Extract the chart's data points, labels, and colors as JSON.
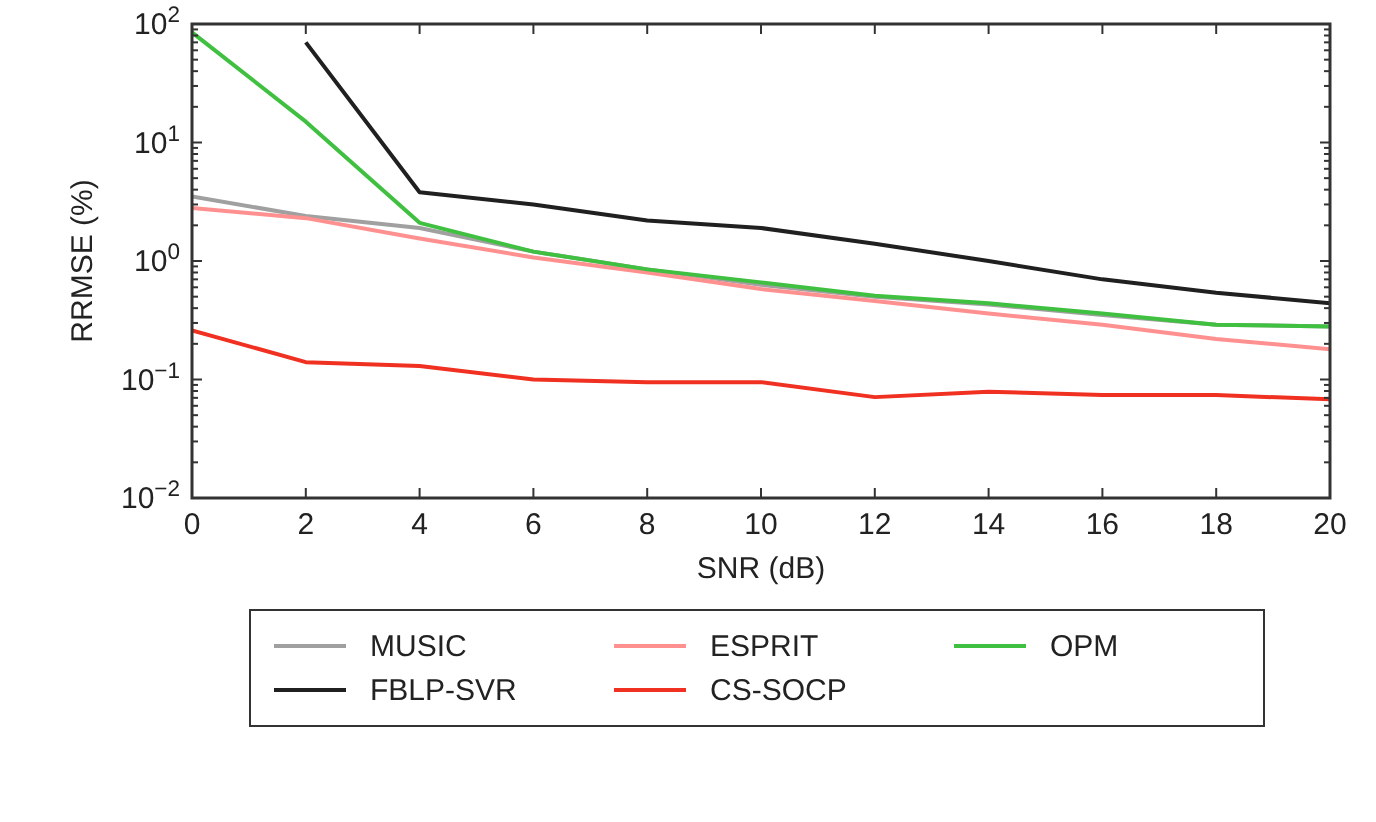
{
  "chart_data": {
    "type": "line",
    "xlabel": "SNR (dB)",
    "ylabel": "RRMSE (%)",
    "x": [
      0,
      2,
      4,
      6,
      8,
      10,
      12,
      14,
      16,
      18,
      20
    ],
    "xlim": [
      0,
      20
    ],
    "xticks": [
      0,
      2,
      4,
      6,
      8,
      10,
      12,
      14,
      16,
      18,
      20
    ],
    "ylim": [
      0.01,
      100
    ],
    "log": true,
    "yticks": [
      {
        "value": 0.01,
        "label": "10$^{−2}$"
      },
      {
        "value": 0.1,
        "label": "10$^{−1}$"
      },
      {
        "value": 1,
        "label": "10$^{0}$"
      },
      {
        "value": 10,
        "label": "10$^{1}$"
      },
      {
        "value": 100,
        "label": "10$^{2}$"
      }
    ],
    "legend": "bottom",
    "grid": false,
    "line_style": "solid",
    "marker": "none",
    "series": [
      {
        "name": "MUSIC",
        "color": "#a0a0a0",
        "values": [
          3.5,
          2.4,
          1.9,
          1.2,
          0.85,
          0.63,
          0.5,
          0.43,
          0.35,
          0.29,
          0.28
        ]
      },
      {
        "name": "ESPRIT",
        "color": "#ff9090",
        "values": [
          2.8,
          2.3,
          1.55,
          1.07,
          0.8,
          0.58,
          0.46,
          0.36,
          0.29,
          0.22,
          0.18
        ]
      },
      {
        "name": "OPM",
        "color": "#40c040",
        "values": [
          85,
          15,
          2.1,
          1.2,
          0.85,
          0.66,
          0.51,
          0.44,
          0.36,
          0.29,
          0.28
        ]
      },
      {
        "name": "FBLP-SVR",
        "color": "#202020",
        "values": [
          null,
          70,
          3.8,
          3.0,
          2.2,
          1.9,
          1.4,
          1.0,
          0.7,
          0.54,
          0.44
        ]
      },
      {
        "name": "CS-SOCP",
        "color": "#f03020",
        "values": [
          0.26,
          0.14,
          0.13,
          0.1,
          0.095,
          0.095,
          0.071,
          0.079,
          0.074,
          0.074,
          0.068
        ]
      }
    ]
  }
}
